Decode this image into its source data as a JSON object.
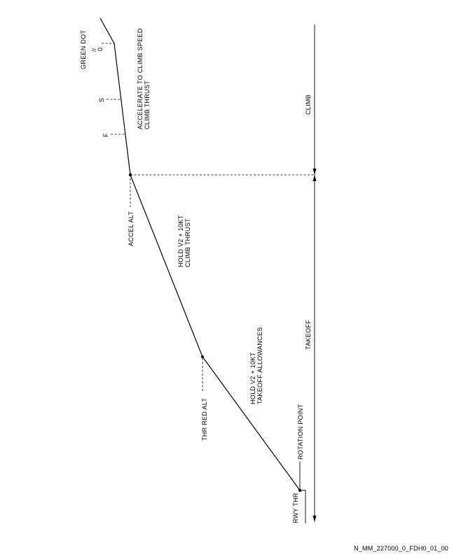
{
  "diagram": {
    "labels": {
      "green_dot": "GREEN DOT",
      "green_dot_zero": "0",
      "green_dot_mark": "//",
      "speed_s": "S",
      "speed_f": "F",
      "accelerate": "ACCELERATE TO CLIMB SPEED",
      "climb_thrust_upper": "CLIMB THRUST",
      "climb": "CLIMB",
      "accel_alt": "ACCEL ALT",
      "hold_v2_upper": "HOLD V2 + 10KT",
      "climb_thrust_mid": "CLIMB THRUST",
      "takeoff": "TAKEOFF",
      "hold_v2_lower": "HOLD V2 + 10KT",
      "takeoff_allowances": "TAKEOFF ALLOWANCES",
      "thr_red_alt": "THR RED ALT",
      "rotation_point": "ROTATION POINT",
      "rwy_thr": "RWY THR"
    },
    "reference": "N_MM_227000_0_FDH0_01_00"
  }
}
